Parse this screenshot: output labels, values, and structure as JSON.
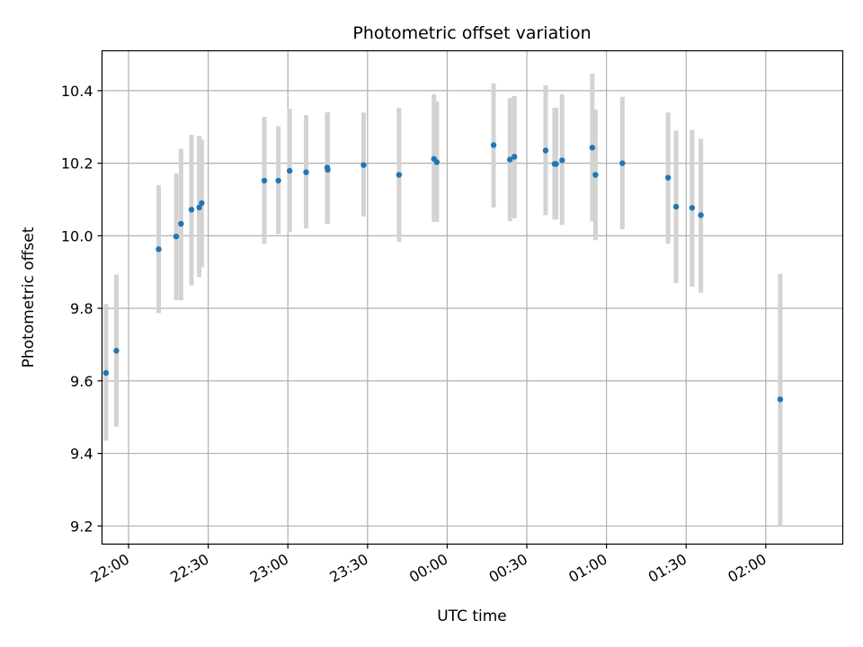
{
  "chart_data": {
    "type": "scatter",
    "title": "Photometric offset variation",
    "xlabel": "UTC time",
    "ylabel": "Photometric offset",
    "ylim": [
      9.15,
      10.51
    ],
    "xlim_minutes_from_midnight": [
      -130,
      149
    ],
    "x_ticks": [
      {
        "label": "22:00",
        "minutes": -120
      },
      {
        "label": "22:30",
        "minutes": -90
      },
      {
        "label": "23:00",
        "minutes": -60
      },
      {
        "label": "23:30",
        "minutes": -30
      },
      {
        "label": "00:00",
        "minutes": 0
      },
      {
        "label": "00:30",
        "minutes": 30
      },
      {
        "label": "01:00",
        "minutes": 60
      },
      {
        "label": "01:30",
        "minutes": 90
      },
      {
        "label": "02:00",
        "minutes": 120
      }
    ],
    "y_ticks": [
      {
        "label": "9.2",
        "value": 9.2
      },
      {
        "label": "9.4",
        "value": 9.4
      },
      {
        "label": "9.6",
        "value": 9.6
      },
      {
        "label": "9.8",
        "value": 9.8
      },
      {
        "label": "10.0",
        "value": 10.0
      },
      {
        "label": "10.2",
        "value": 10.2
      },
      {
        "label": "10.4",
        "value": 10.4
      }
    ],
    "grid": true,
    "marker_color": "#1f77b4",
    "errorbar_color": "#d3d3d3",
    "points": [
      {
        "time": "21:51:30",
        "y": 9.622,
        "lo": 9.435,
        "hi": 9.812
      },
      {
        "time": "21:55:24",
        "y": 9.683,
        "lo": 9.474,
        "hi": 9.893
      },
      {
        "time": "22:11:20",
        "y": 9.963,
        "lo": 9.787,
        "hi": 10.14
      },
      {
        "time": "22:17:57",
        "y": 9.998,
        "lo": 9.823,
        "hi": 10.172
      },
      {
        "time": "22:19:45",
        "y": 10.033,
        "lo": 9.822,
        "hi": 10.24
      },
      {
        "time": "22:23:41",
        "y": 10.072,
        "lo": 9.863,
        "hi": 10.278
      },
      {
        "time": "22:26:36",
        "y": 10.078,
        "lo": 9.886,
        "hi": 10.275
      },
      {
        "time": "22:27:32",
        "y": 10.09,
        "lo": 9.913,
        "hi": 10.265
      },
      {
        "time": "22:51:08",
        "y": 10.152,
        "lo": 9.978,
        "hi": 10.328
      },
      {
        "time": "22:56:25",
        "y": 10.152,
        "lo": 10.005,
        "hi": 10.302
      },
      {
        "time": "23:00:39",
        "y": 10.179,
        "lo": 10.01,
        "hi": 10.35
      },
      {
        "time": "23:06:52",
        "y": 10.175,
        "lo": 10.02,
        "hi": 10.333
      },
      {
        "time": "23:14:49",
        "y": 10.188,
        "lo": 10.033,
        "hi": 10.34
      },
      {
        "time": "23:15:01",
        "y": 10.182,
        "lo": 10.033,
        "hi": 10.34
      },
      {
        "time": "23:28:31",
        "y": 10.195,
        "lo": 10.053,
        "hi": 10.34
      },
      {
        "time": "23:41:52",
        "y": 10.168,
        "lo": 9.983,
        "hi": 10.353
      },
      {
        "time": "23:55:01",
        "y": 10.212,
        "lo": 10.038,
        "hi": 10.39
      },
      {
        "time": "23:56:06",
        "y": 10.203,
        "lo": 10.038,
        "hi": 10.37
      },
      {
        "time": "00:17:29",
        "y": 10.25,
        "lo": 10.078,
        "hi": 10.42
      },
      {
        "time": "00:23:38",
        "y": 10.21,
        "lo": 10.04,
        "hi": 10.38
      },
      {
        "time": "00:25:20",
        "y": 10.218,
        "lo": 10.048,
        "hi": 10.385
      },
      {
        "time": "00:37:05",
        "y": 10.235,
        "lo": 10.057,
        "hi": 10.415
      },
      {
        "time": "00:40:27",
        "y": 10.198,
        "lo": 10.045,
        "hi": 10.353
      },
      {
        "time": "00:41:01",
        "y": 10.198,
        "lo": 10.045,
        "hi": 10.353
      },
      {
        "time": "00:43:17",
        "y": 10.208,
        "lo": 10.03,
        "hi": 10.39
      },
      {
        "time": "00:54:39",
        "y": 10.243,
        "lo": 10.04,
        "hi": 10.447
      },
      {
        "time": "00:55:51",
        "y": 10.168,
        "lo": 9.988,
        "hi": 10.348
      },
      {
        "time": "01:05:59",
        "y": 10.2,
        "lo": 10.018,
        "hi": 10.383
      },
      {
        "time": "01:23:13",
        "y": 10.16,
        "lo": 9.978,
        "hi": 10.34
      },
      {
        "time": "01:26:14",
        "y": 10.08,
        "lo": 9.87,
        "hi": 10.29
      },
      {
        "time": "01:32:15",
        "y": 10.077,
        "lo": 9.86,
        "hi": 10.292
      },
      {
        "time": "01:35:33",
        "y": 10.057,
        "lo": 9.843,
        "hi": 10.268
      },
      {
        "time": "02:05:27",
        "y": 9.549,
        "lo": 9.2,
        "hi": 9.895
      }
    ]
  }
}
